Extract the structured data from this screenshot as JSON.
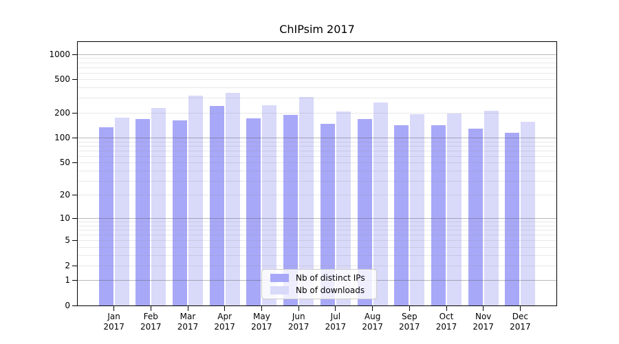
{
  "figure": {
    "background": "#ffffff"
  },
  "chart_data": {
    "type": "bar",
    "title": "ChIPsim 2017",
    "xlabel": "",
    "ylabel": "",
    "categories": [
      "Jan",
      "Feb",
      "Mar",
      "Apr",
      "May",
      "Jun",
      "Jul",
      "Aug",
      "Sep",
      "Oct",
      "Nov",
      "Dec"
    ],
    "year_label": "2017",
    "series": [
      {
        "name": "Nb of distinct IPs",
        "color": "#a8a8f8",
        "values": [
          134,
          166,
          162,
          238,
          172,
          188,
          147,
          168,
          142,
          140,
          128,
          115
        ]
      },
      {
        "name": "Nb of downloads",
        "color": "#d9d9fa",
        "values": [
          174,
          228,
          318,
          346,
          245,
          309,
          206,
          262,
          191,
          196,
          209,
          156
        ]
      }
    ],
    "yscale": "log1p",
    "yticks": [
      0,
      1,
      2,
      5,
      10,
      20,
      50,
      100,
      200,
      500,
      1000
    ],
    "ylim": [
      0,
      1400
    ],
    "grid": "horizontal, major lines at powers of 10 plus light minor decade lines",
    "legend_position": "inside plot, lower center",
    "colors": {
      "major_grid": "#b5b5b5",
      "minor_grid": "#e7e7e7",
      "spine": "#000000",
      "background": "#ffffff"
    }
  }
}
